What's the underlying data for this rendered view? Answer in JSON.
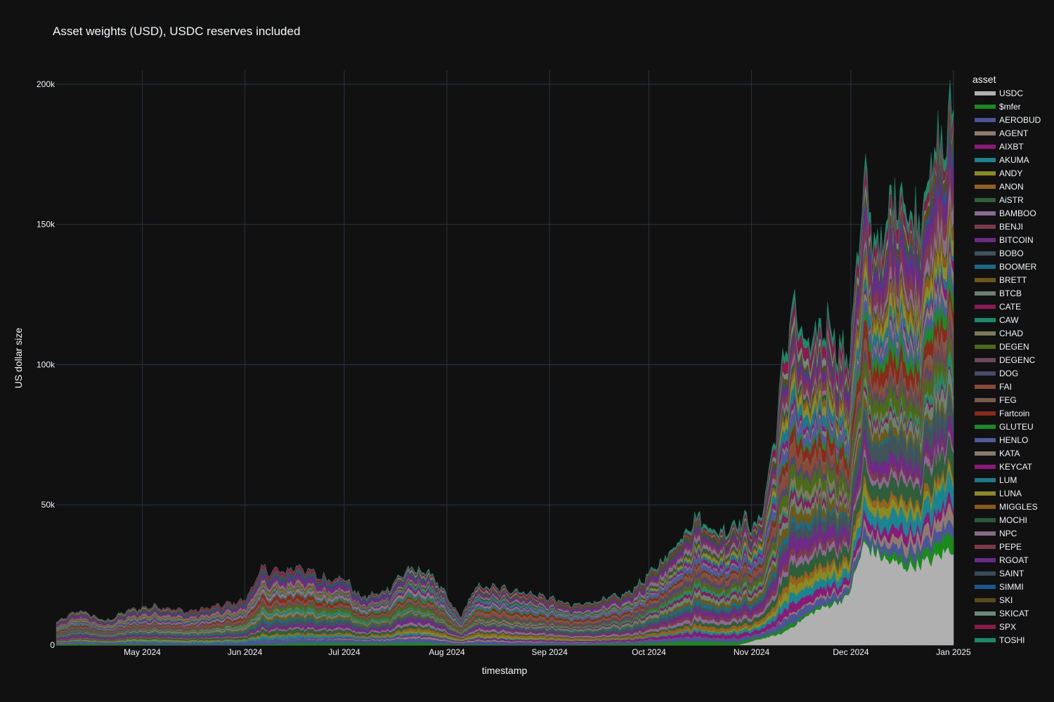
{
  "chart_data": {
    "type": "area",
    "title": "Asset weights (USD), USDC reserves included",
    "xlabel": "timestamp",
    "ylabel": "US dollar size",
    "legend_title": "asset",
    "legend_placement": "right",
    "grid": true,
    "stacked": true,
    "background": "#111111",
    "grid_color": "#283442",
    "x_range": [
      "2024-04-05",
      "2025-01-01"
    ],
    "ylim": [
      0,
      205000
    ],
    "x_ticks": [
      {
        "date": "2024-05-01",
        "label": "May 2024"
      },
      {
        "date": "2024-06-01",
        "label": "Jun 2024"
      },
      {
        "date": "2024-07-01",
        "label": "Jul 2024"
      },
      {
        "date": "2024-08-01",
        "label": "Aug 2024"
      },
      {
        "date": "2024-09-01",
        "label": "Sep 2024"
      },
      {
        "date": "2024-10-01",
        "label": "Oct 2024"
      },
      {
        "date": "2024-11-01",
        "label": "Nov 2024"
      },
      {
        "date": "2024-12-01",
        "label": "Dec 2024"
      },
      {
        "date": "2025-01-01",
        "label": "Jan 2025"
      }
    ],
    "y_ticks": [
      {
        "value": 0,
        "label": "0"
      },
      {
        "value": 50000,
        "label": "50k"
      },
      {
        "value": 100000,
        "label": "100k"
      },
      {
        "value": 150000,
        "label": "150k"
      },
      {
        "value": 200000,
        "label": "200k"
      }
    ],
    "total_profile": [
      {
        "date": "2024-04-05",
        "value": 8000
      },
      {
        "date": "2024-04-12",
        "value": 12500
      },
      {
        "date": "2024-04-20",
        "value": 8500
      },
      {
        "date": "2024-04-27",
        "value": 12500
      },
      {
        "date": "2024-05-05",
        "value": 14000
      },
      {
        "date": "2024-05-15",
        "value": 12000
      },
      {
        "date": "2024-05-24",
        "value": 14000
      },
      {
        "date": "2024-06-01",
        "value": 16000
      },
      {
        "date": "2024-06-06",
        "value": 27000
      },
      {
        "date": "2024-06-13",
        "value": 26000
      },
      {
        "date": "2024-06-17",
        "value": 28500
      },
      {
        "date": "2024-06-24",
        "value": 24000
      },
      {
        "date": "2024-07-01",
        "value": 24000
      },
      {
        "date": "2024-07-06",
        "value": 17000
      },
      {
        "date": "2024-07-13",
        "value": 19000
      },
      {
        "date": "2024-07-20",
        "value": 27000
      },
      {
        "date": "2024-07-27",
        "value": 26000
      },
      {
        "date": "2024-08-05",
        "value": 10000
      },
      {
        "date": "2024-08-10",
        "value": 21000
      },
      {
        "date": "2024-08-20",
        "value": 20000
      },
      {
        "date": "2024-09-01",
        "value": 17000
      },
      {
        "date": "2024-09-08",
        "value": 14000
      },
      {
        "date": "2024-09-16",
        "value": 16000
      },
      {
        "date": "2024-09-24",
        "value": 18000
      },
      {
        "date": "2024-10-01",
        "value": 25000
      },
      {
        "date": "2024-10-08",
        "value": 34000
      },
      {
        "date": "2024-10-15",
        "value": 46000
      },
      {
        "date": "2024-10-22",
        "value": 40000
      },
      {
        "date": "2024-10-29",
        "value": 45000
      },
      {
        "date": "2024-11-03",
        "value": 42000
      },
      {
        "date": "2024-11-07",
        "value": 66000
      },
      {
        "date": "2024-11-13",
        "value": 122000
      },
      {
        "date": "2024-11-18",
        "value": 104000
      },
      {
        "date": "2024-11-24",
        "value": 117000
      },
      {
        "date": "2024-11-30",
        "value": 100000
      },
      {
        "date": "2024-12-05",
        "value": 163000
      },
      {
        "date": "2024-12-10",
        "value": 140000
      },
      {
        "date": "2024-12-15",
        "value": 166000
      },
      {
        "date": "2024-12-20",
        "value": 150000
      },
      {
        "date": "2024-12-25",
        "value": 170000
      },
      {
        "date": "2025-01-01",
        "value": 188000
      }
    ],
    "usdc_profile": [
      {
        "date": "2024-04-05",
        "value": 0
      },
      {
        "date": "2024-10-28",
        "value": 0
      },
      {
        "date": "2024-11-03",
        "value": 2000
      },
      {
        "date": "2024-11-10",
        "value": 4000
      },
      {
        "date": "2024-11-20",
        "value": 12000
      },
      {
        "date": "2024-11-30",
        "value": 17000
      },
      {
        "date": "2024-12-05",
        "value": 36000
      },
      {
        "date": "2024-12-12",
        "value": 30000
      },
      {
        "date": "2024-12-18",
        "value": 28000
      },
      {
        "date": "2024-12-25",
        "value": 30000
      },
      {
        "date": "2025-01-01",
        "value": 35000
      }
    ],
    "series": [
      {
        "name": "USDC",
        "color": "#b0b0b0"
      },
      {
        "name": "$mfer",
        "color": "#1a8a1a"
      },
      {
        "name": "AEROBUD",
        "color": "#4a5496"
      },
      {
        "name": "AGENT",
        "color": "#8f7a70"
      },
      {
        "name": "AIXBT",
        "color": "#8a1a78"
      },
      {
        "name": "AKUMA",
        "color": "#1a8590"
      },
      {
        "name": "ANDY",
        "color": "#8a8a24"
      },
      {
        "name": "ANON",
        "color": "#94621e"
      },
      {
        "name": "AiSTR",
        "color": "#2f5e3a"
      },
      {
        "name": "BAMBOO",
        "color": "#8a6a92"
      },
      {
        "name": "BENJI",
        "color": "#7a3c4c"
      },
      {
        "name": "BITCOIN",
        "color": "#6e2a86"
      },
      {
        "name": "BOBO",
        "color": "#3f5358"
      },
      {
        "name": "BOOMER",
        "color": "#1a6a8a"
      },
      {
        "name": "BRETT",
        "color": "#6a5a1a"
      },
      {
        "name": "BTCB",
        "color": "#6a8070"
      },
      {
        "name": "CATE",
        "color": "#8a1a5a"
      },
      {
        "name": "CAW",
        "color": "#1a8a6a"
      },
      {
        "name": "CHAD",
        "color": "#7a7a5a"
      },
      {
        "name": "DEGEN",
        "color": "#4a6a1a"
      },
      {
        "name": "DEGENC",
        "color": "#6a4a5a"
      },
      {
        "name": "DOG",
        "color": "#4a4a6a"
      },
      {
        "name": "FAI",
        "color": "#8a4a3a"
      },
      {
        "name": "FEG",
        "color": "#7a5a4a"
      },
      {
        "name": "Fartcoin",
        "color": "#8a2a1a"
      },
      {
        "name": "GLUTEU",
        "color": "#1a8a2a"
      },
      {
        "name": "HENLO",
        "color": "#4a5a9a"
      },
      {
        "name": "KATA",
        "color": "#8a7a6a"
      },
      {
        "name": "KEYCAT",
        "color": "#8a1a7a"
      },
      {
        "name": "LUM",
        "color": "#1a7a8a"
      },
      {
        "name": "LUNA",
        "color": "#8a8a2a"
      },
      {
        "name": "MIGGLES",
        "color": "#8a5a1a"
      },
      {
        "name": "MOCHI",
        "color": "#2a5a3a"
      },
      {
        "name": "NPC",
        "color": "#8a6a8a"
      },
      {
        "name": "PEPE",
        "color": "#7a3a4a"
      },
      {
        "name": "RGOAT",
        "color": "#6a2a8a"
      },
      {
        "name": "SAINT",
        "color": "#3a4a5a"
      },
      {
        "name": "SIMMI",
        "color": "#1a5a8a"
      },
      {
        "name": "SKI",
        "color": "#5a4a1a"
      },
      {
        "name": "SKICAT",
        "color": "#6a8a7a"
      },
      {
        "name": "SPX",
        "color": "#8a1a4a"
      },
      {
        "name": "TOSHI",
        "color": "#1a8a6a"
      }
    ]
  }
}
